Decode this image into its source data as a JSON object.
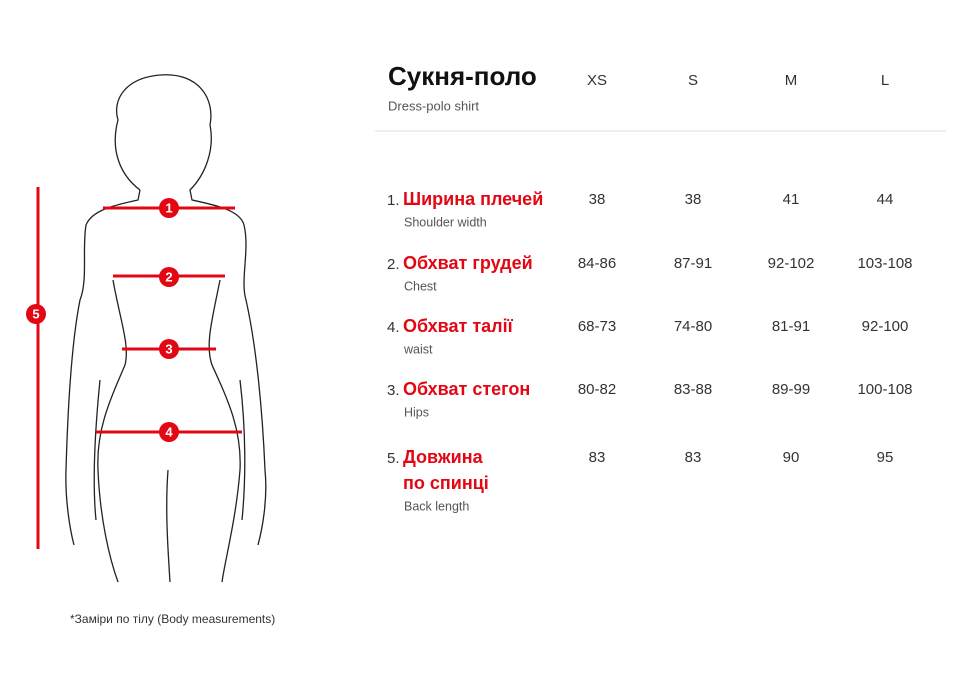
{
  "title": "Сукня-поло",
  "subtitle": "Dress-polo shirt",
  "sizes": [
    "XS",
    "S",
    "M",
    "L"
  ],
  "rows": [
    {
      "number": "1.",
      "name": [
        "Ширина плечей"
      ],
      "english": "Shoulder width",
      "values": [
        "38",
        "38",
        "41",
        "44"
      ]
    },
    {
      "number": "2.",
      "name": [
        "Обхват грудей"
      ],
      "english": "Chest",
      "values": [
        "84-86",
        "87-91",
        "92-102",
        "103-108"
      ]
    },
    {
      "number": "4.",
      "name": [
        "Обхват талії"
      ],
      "english": "waist",
      "values": [
        "68-73",
        "74-80",
        "81-91",
        "92-100"
      ]
    },
    {
      "number": "3.",
      "name": [
        "Обхват стегон"
      ],
      "english": "Hips",
      "values": [
        "80-82",
        "83-88",
        "89-99",
        "100-108"
      ]
    },
    {
      "number": "5.",
      "name": [
        "Довжина",
        "по спинці"
      ],
      "english": "Back length",
      "values": [
        "83",
        "83",
        "90",
        "95"
      ]
    }
  ],
  "figure": {
    "markers": [
      "1",
      "2",
      "3",
      "4",
      "5"
    ]
  },
  "footnote": "*Заміри по тілу (Body measurements)"
}
